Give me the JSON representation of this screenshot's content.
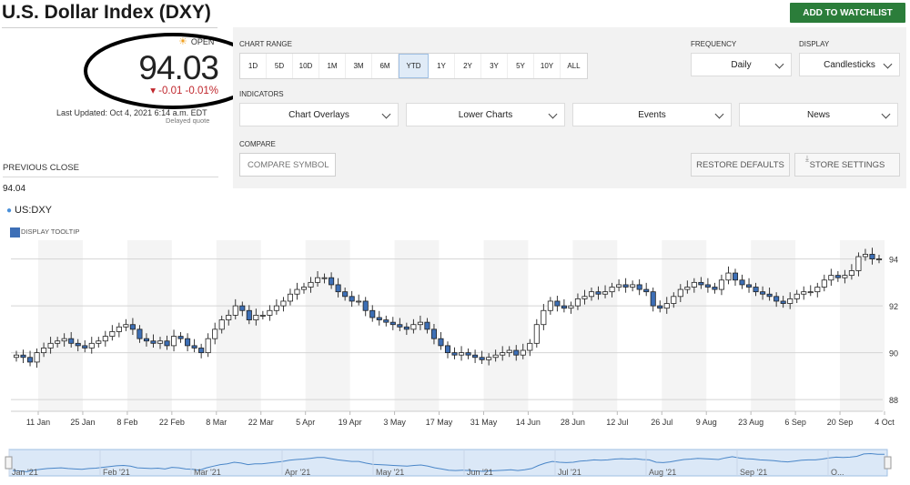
{
  "header": {
    "title": "U.S. Dollar Index (DXY)",
    "watchlist_label": "ADD TO WATCHLIST"
  },
  "quote": {
    "status": "OPEN",
    "price": "94.03",
    "change": "▾ -0.01  -0.01%",
    "last_updated": "Last Updated: Oct 4, 2021 6:14 a.m. EDT",
    "delayed": "Delayed quote",
    "prev_close_label": "PREVIOUS CLOSE",
    "prev_close_value": "94.04",
    "symbol": "US:DXY",
    "display_tooltip": "DISPLAY TOOLTIP"
  },
  "controls": {
    "chart_range_label": "CHART RANGE",
    "ranges": [
      "1D",
      "5D",
      "10D",
      "1M",
      "3M",
      "6M",
      "YTD",
      "1Y",
      "2Y",
      "3Y",
      "5Y",
      "10Y",
      "ALL"
    ],
    "active_range": "YTD",
    "frequency_label": "FREQUENCY",
    "frequency_value": "Daily",
    "display_label": "DISPLAY",
    "display_value": "Candlesticks",
    "indicators_label": "INDICATORS",
    "indicators": [
      "Chart Overlays",
      "Lower Charts",
      "Events",
      "News"
    ],
    "compare_label": "COMPARE",
    "compare_placeholder": "COMPARE SYMBOL",
    "restore_label": "RESTORE DEFAULTS",
    "store_label": "STORE SETTINGS"
  },
  "colors": {
    "up": "#ffffff",
    "down": "#3d6fb6",
    "watchlist_bg": "#2b7d3a",
    "change": "#c0272d",
    "navigator_fill": "#dbe8f7"
  },
  "chart_data": {
    "type": "candlestick",
    "x_ticks": [
      "11 Jan",
      "25 Jan",
      "8 Feb",
      "22 Feb",
      "8 Mar",
      "22 Mar",
      "5 Apr",
      "19 Apr",
      "3 May",
      "17 May",
      "31 May",
      "14 Jun",
      "28 Jun",
      "12 Jul",
      "26 Jul",
      "9 Aug",
      "23 Aug",
      "6 Sep",
      "20 Sep",
      "4 Oct"
    ],
    "y_ticks": [
      88,
      90,
      92,
      94
    ],
    "ylim": [
      87.5,
      94.8
    ],
    "grid": true,
    "last_value": 94.03,
    "close_series": [
      89.9,
      89.8,
      89.6,
      90.0,
      90.2,
      90.4,
      90.5,
      90.6,
      90.4,
      90.3,
      90.2,
      90.4,
      90.5,
      90.7,
      90.9,
      91.1,
      91.2,
      91.0,
      90.6,
      90.5,
      90.4,
      90.5,
      90.3,
      90.7,
      90.6,
      90.3,
      90.2,
      90.0,
      90.6,
      91.0,
      91.4,
      91.6,
      92.0,
      91.8,
      91.4,
      91.6,
      91.6,
      91.8,
      92.0,
      92.2,
      92.5,
      92.7,
      92.8,
      93.0,
      93.2,
      93.2,
      92.9,
      92.6,
      92.4,
      92.2,
      92.2,
      91.8,
      91.5,
      91.4,
      91.3,
      91.2,
      91.1,
      91.0,
      91.2,
      91.3,
      91.0,
      90.6,
      90.3,
      90.0,
      89.9,
      90.0,
      89.9,
      89.8,
      89.7,
      89.8,
      89.9,
      90.0,
      90.1,
      89.9,
      90.1,
      90.4,
      91.2,
      91.8,
      92.2,
      92.0,
      91.9,
      92.0,
      92.3,
      92.4,
      92.6,
      92.5,
      92.6,
      92.8,
      92.9,
      92.8,
      92.9,
      92.7,
      92.6,
      92.0,
      91.9,
      92.1,
      92.4,
      92.7,
      92.8,
      93.0,
      92.9,
      92.8,
      92.7,
      93.1,
      93.4,
      93.1,
      92.9,
      92.8,
      92.6,
      92.5,
      92.4,
      92.2,
      92.1,
      92.3,
      92.5,
      92.6,
      92.6,
      92.8,
      93.1,
      93.3,
      93.2,
      93.3,
      93.5,
      94.1,
      94.2,
      94.0,
      94.0
    ],
    "navigator_months": [
      "Jan '21",
      "Feb '21",
      "Mar '21",
      "Apr '21",
      "May '21",
      "Jun '21",
      "Jul '21",
      "Aug '21",
      "Sep '21",
      "O..."
    ]
  }
}
